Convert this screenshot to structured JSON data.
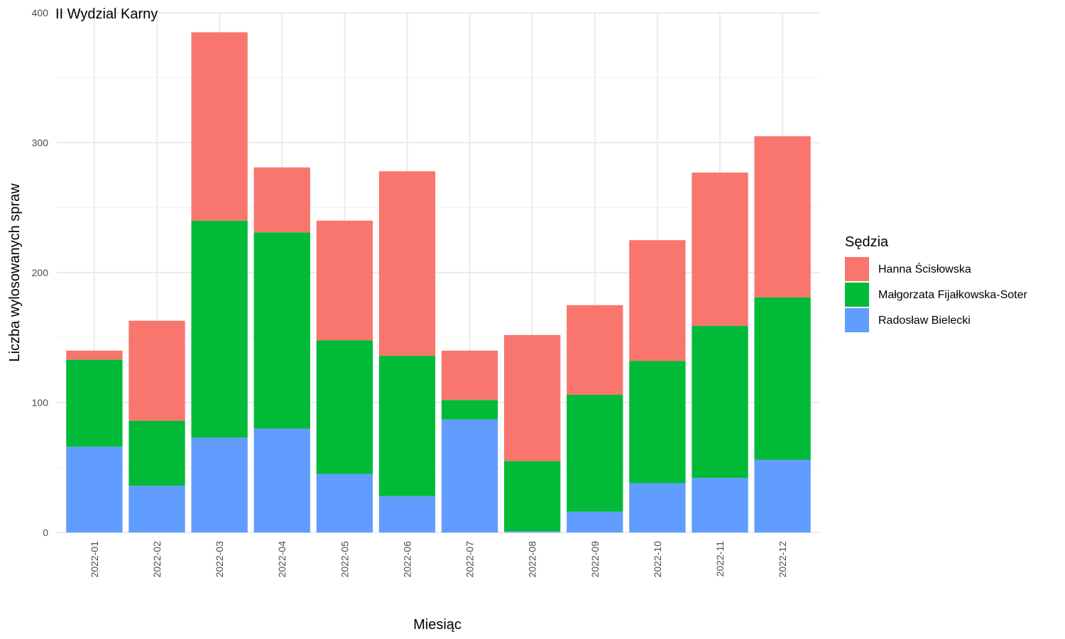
{
  "chart_data": {
    "type": "bar",
    "stacked": true,
    "title": "II Wydzial Karny",
    "xlabel": "Miesiąc",
    "ylabel": "Liczba wylosowanych spraw",
    "ylim": [
      0,
      400
    ],
    "yticks": [
      0,
      100,
      200,
      300,
      400
    ],
    "grid": true,
    "legend_position": "right",
    "legend_title": "Sędzia",
    "categories": [
      "2022-01",
      "2022-02",
      "2022-03",
      "2022-04",
      "2022-05",
      "2022-06",
      "2022-07",
      "2022-08",
      "2022-09",
      "2022-10",
      "2022-11",
      "2022-12"
    ],
    "series": [
      {
        "name": "Radosław Bielecki",
        "color": "#619CFF",
        "values": [
          66,
          36,
          73,
          80,
          45,
          28,
          87,
          1,
          16,
          38,
          42,
          56
        ]
      },
      {
        "name": "Małgorzata Fijałkowska-Soter",
        "color": "#00BA38",
        "values": [
          67,
          50,
          167,
          151,
          103,
          108,
          15,
          54,
          90,
          94,
          117,
          125
        ]
      },
      {
        "name": "Hanna Ścisłowska",
        "color": "#F8766D",
        "values": [
          7,
          77,
          145,
          50,
          92,
          142,
          38,
          97,
          69,
          93,
          118,
          124
        ]
      }
    ],
    "legend_order": [
      "Hanna Ścisłowska",
      "Małgorzata Fijałkowska-Soter",
      "Radosław Bielecki"
    ]
  }
}
